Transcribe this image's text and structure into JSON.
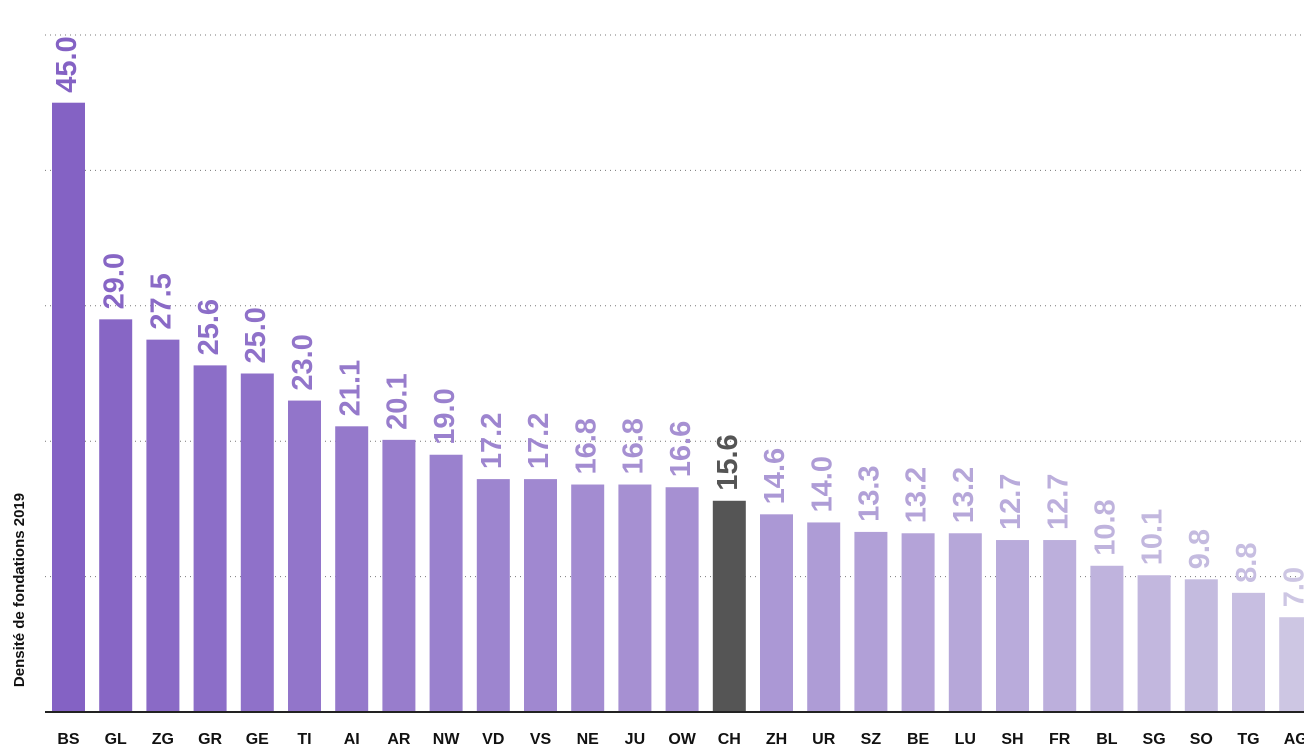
{
  "chart_data": {
    "type": "bar",
    "y_label": "Densité de fondations 2019",
    "categories": [
      "BS",
      "GL",
      "ZG",
      "GR",
      "GE",
      "TI",
      "AI",
      "AR",
      "NW",
      "VD",
      "VS",
      "NE",
      "JU",
      "OW",
      "CH",
      "ZH",
      "UR",
      "SZ",
      "BE",
      "LU",
      "SH",
      "FR",
      "BL",
      "SG",
      "SO",
      "TG",
      "AG"
    ],
    "values": [
      45.0,
      29.0,
      27.5,
      25.6,
      25.0,
      23.0,
      21.1,
      20.1,
      19.0,
      17.2,
      17.2,
      16.8,
      16.8,
      16.6,
      15.6,
      14.6,
      14.0,
      13.3,
      13.2,
      13.2,
      12.7,
      12.7,
      10.8,
      10.1,
      9.8,
      8.8,
      7.0
    ],
    "value_labels": [
      "45.0",
      "29.0",
      "27.5",
      "25.6",
      "25.0",
      "23.0",
      "21.1",
      "20.1",
      "19.0",
      "17.2",
      "17.2",
      "16.8",
      "16.8",
      "16.6",
      "15.6",
      "14.6",
      "14.0",
      "13.3",
      "13.2",
      "13.2",
      "12.7",
      "12.7",
      "10.8",
      "10.1",
      "9.8",
      "8.8",
      "7.0"
    ],
    "colors": [
      "#8462c4",
      "#8766c5",
      "#8a6ac6",
      "#8c6ec8",
      "#8f71c9",
      "#9275ca",
      "#9579cb",
      "#987dcc",
      "#9a81ce",
      "#9d85cf",
      "#a088d0",
      "#a38cd1",
      "#a690d2",
      "#a690d2",
      "#555555",
      "#ab98d5",
      "#ae9cd6",
      "#b1a0d7",
      "#b4a3d8",
      "#b6a7d9",
      "#b9abdb",
      "#bcafdc",
      "#bfb3dd",
      "#c2b7de",
      "#c4bbdf",
      "#c7bee1",
      "#cdc6e3"
    ],
    "ylim": [
      0,
      50
    ],
    "yticks": [
      10,
      20,
      30,
      40,
      50
    ],
    "grid": true
  }
}
